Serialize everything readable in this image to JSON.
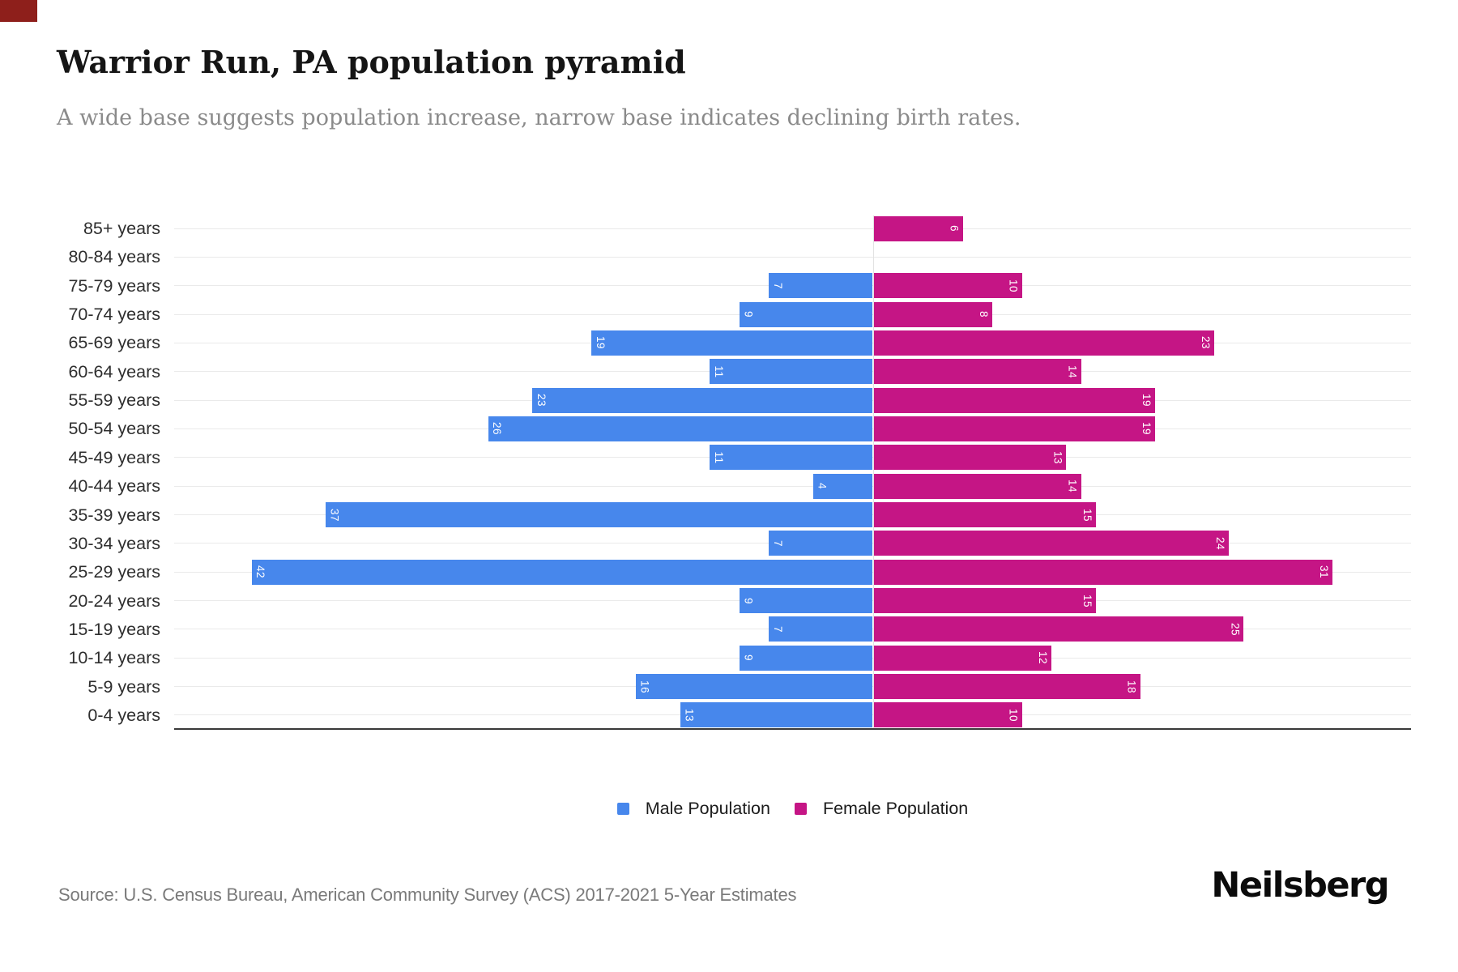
{
  "marker_color": "#8e1f1b",
  "header": {
    "title": "Warrior Run, PA population pyramid",
    "subtitle": "A wide base suggests population increase, narrow base indicates declining birth rates."
  },
  "chart_data": {
    "type": "bar",
    "subtype": "population-pyramid",
    "orientation": "horizontal",
    "grid": true,
    "legend_position": "bottom",
    "value_labels": "inside-end, rotated 90deg, white",
    "categories": [
      "85+ years",
      "80-84 years",
      "75-79 years",
      "70-74 years",
      "65-69 years",
      "60-64 years",
      "55-59 years",
      "50-54 years",
      "45-49 years",
      "40-44 years",
      "35-39 years",
      "30-34 years",
      "25-29 years",
      "20-24 years",
      "15-19 years",
      "10-14 years",
      "5-9 years",
      "0-4 years"
    ],
    "series": [
      {
        "name": "Male Population",
        "side": "left",
        "color": "#4787EC",
        "values": [
          0,
          0,
          7,
          9,
          19,
          11,
          23,
          26,
          11,
          4,
          37,
          7,
          42,
          9,
          7,
          9,
          16,
          13
        ]
      },
      {
        "name": "Female Population",
        "side": "right",
        "color": "#C51585",
        "values": [
          6,
          0,
          10,
          8,
          23,
          14,
          19,
          19,
          13,
          14,
          15,
          24,
          31,
          15,
          25,
          12,
          18,
          10
        ]
      }
    ],
    "xlim_left_axis": [
      47,
      0
    ],
    "xlim_right_axis": [
      0,
      36
    ]
  },
  "footer": {
    "source": "Source: U.S. Census Bureau, American Community Survey (ACS) 2017-2021 5-Year Estimates",
    "brand": "Neilsberg"
  }
}
